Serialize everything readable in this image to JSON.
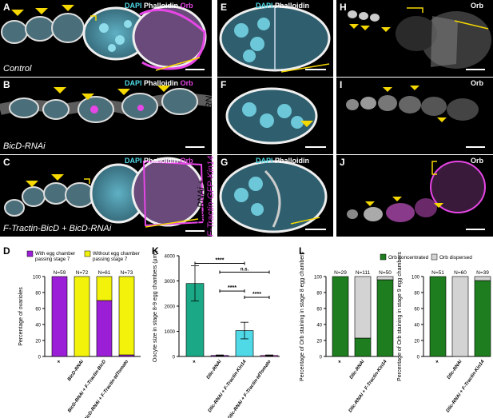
{
  "labels": {
    "A": "A",
    "B": "B",
    "C": "C",
    "D": "D",
    "E": "E",
    "F": "F",
    "G": "G",
    "H": "H",
    "I": "I",
    "J": "J",
    "K": "K",
    "L": "L"
  },
  "stains": {
    "dapi": "DAPI",
    "phalloidin": "Phalloidin",
    "orb": "Orb"
  },
  "conditions": {
    "A": "Control",
    "B": "BicD-RNAi",
    "C": "F-Tractin-BicD + BicD-RNAi",
    "E": "Control",
    "F": "Dlic-RNAi",
    "G_line1": "Dlic-RNAi +",
    "G_line2": "F-Tractin-GFP-Kin14"
  },
  "colors": {
    "purple": "#9b1fd6",
    "yellow": "#f2f20a",
    "teal": "#1aa886",
    "cyan": "#4fd8e6",
    "green": "#1e7d1e",
    "grey": "#d3d3d3",
    "magenta": "#e646e6",
    "orb_label": "#e646e6",
    "kin14_label": "#d02bd0"
  },
  "chart_data": [
    {
      "panel": "D",
      "type": "bar",
      "stacked": true,
      "ylabel": "Percentage of ovarioles",
      "ylim": [
        0,
        100
      ],
      "yticks": [
        0,
        20,
        40,
        60,
        80,
        100
      ],
      "categories": [
        "+",
        "BicD-RNAi",
        "BicD-RNAi + F-Tractin-BicD",
        "BicD-RNAi + F-Tractin-tdTomato"
      ],
      "n_labels": [
        "N=59",
        "N=72",
        "N=61",
        "N=73"
      ],
      "series": [
        {
          "name": "With egg chamber passing stage 7",
          "values": [
            100,
            0,
            70,
            2
          ]
        },
        {
          "name": "Without egg chamber passing stage 7",
          "values": [
            0,
            100,
            30,
            98
          ]
        }
      ]
    },
    {
      "panel": "K",
      "type": "bar",
      "ylabel": "Oocyte size in stage 8-9 egg chambers (µm²)",
      "ylim": [
        0,
        4000
      ],
      "yticks": [
        0,
        1000,
        2000,
        3000,
        4000
      ],
      "categories": [
        "+",
        "Dlic-RNAi",
        "Dlic-RNAi + F-Tractin-Kin14",
        "Dlic-RNAi + F-Tractin-tdTomato"
      ],
      "values": [
        2900,
        40,
        1030,
        40
      ],
      "errors": [
        700,
        20,
        330,
        20
      ],
      "significance": [
        {
          "from": 0,
          "to": 2,
          "label": "****"
        },
        {
          "from": 1,
          "to": 3,
          "label": "n.s."
        },
        {
          "from": 1,
          "to": 2,
          "label": "****"
        },
        {
          "from": 2,
          "to": 3,
          "label": "****"
        }
      ]
    },
    {
      "panel": "L-left",
      "type": "bar",
      "stacked": true,
      "ylabel": "Percentage of Orb staining in stage 8 egg chambers",
      "ylim": [
        0,
        100
      ],
      "yticks": [
        0,
        20,
        40,
        60,
        80,
        100
      ],
      "categories": [
        "+",
        "Dlic-RNAi",
        "Dlic-RNAi + F-Tractin-Kin14"
      ],
      "n_labels": [
        "N=29",
        "N=111",
        "N=50"
      ],
      "series": [
        {
          "name": "Orb concentrated",
          "values": [
            100,
            23,
            96
          ]
        },
        {
          "name": "Orb dispersed",
          "values": [
            0,
            77,
            4
          ]
        }
      ]
    },
    {
      "panel": "L-right",
      "type": "bar",
      "stacked": true,
      "ylabel": "Percentage of Orb staining in stage 9 egg chambers",
      "ylim": [
        0,
        100
      ],
      "yticks": [
        0,
        20,
        40,
        60,
        80,
        100
      ],
      "categories": [
        "+",
        "Dlic-RNAi",
        "Dlic-RNAi + F-Tractin-Kin14"
      ],
      "n_labels": [
        "N=51",
        "N=60",
        "N=39"
      ],
      "series": [
        {
          "name": "Orb concentrated",
          "values": [
            100,
            0,
            95
          ]
        },
        {
          "name": "Orb dispersed",
          "values": [
            0,
            100,
            5
          ]
        }
      ]
    }
  ]
}
